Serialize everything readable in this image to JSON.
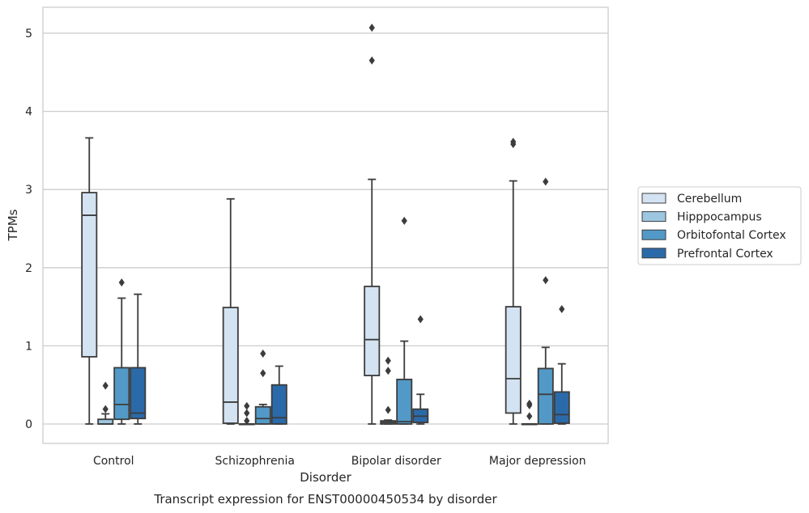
{
  "caption": "Transcript expression for ENST00000450534 by disorder",
  "chart_data": {
    "type": "box",
    "xlabel": "Disorder",
    "ylabel": "TPMs",
    "ylim": [
      -0.25,
      5.33
    ],
    "yticks": [
      0,
      1,
      2,
      3,
      4,
      5
    ],
    "grid": "horizontal",
    "legend_position": "right",
    "categories": [
      "Control",
      "Schizophrenia",
      "Bipolar disorder",
      "Major depression"
    ],
    "series": [
      {
        "name": "Cerebellum",
        "color": "#d3e3f2",
        "boxes": [
          {
            "whisker_low": 0.0,
            "q1": 0.86,
            "median": 2.67,
            "q3": 2.96,
            "whisker_high": 3.66,
            "outliers": []
          },
          {
            "whisker_low": 0.0,
            "q1": 0.01,
            "median": 0.28,
            "q3": 1.49,
            "whisker_high": 2.88,
            "outliers": []
          },
          {
            "whisker_low": 0.0,
            "q1": 0.62,
            "median": 1.08,
            "q3": 1.76,
            "whisker_high": 3.13,
            "outliers": [
              4.65,
              5.07
            ]
          },
          {
            "whisker_low": 0.0,
            "q1": 0.14,
            "median": 0.58,
            "q3": 1.5,
            "whisker_high": 3.11,
            "outliers": [
              3.58,
              3.61
            ]
          }
        ]
      },
      {
        "name": "Hipppocampus",
        "color": "#9dc7e0",
        "boxes": [
          {
            "whisker_low": 0.0,
            "q1": 0.0,
            "median": 0.0,
            "q3": 0.06,
            "whisker_high": 0.13,
            "outliers": [
              0.19,
              0.49
            ]
          },
          {
            "whisker_low": 0.0,
            "q1": 0.0,
            "median": 0.0,
            "q3": 0.0,
            "whisker_high": 0.0,
            "outliers": [
              0.04,
              0.14,
              0.23
            ]
          },
          {
            "whisker_low": 0.0,
            "q1": 0.0,
            "median": 0.02,
            "q3": 0.04,
            "whisker_high": 0.05,
            "outliers": [
              0.18,
              0.68,
              0.81
            ]
          },
          {
            "whisker_low": 0.0,
            "q1": 0.0,
            "median": 0.0,
            "q3": 0.0,
            "whisker_high": 0.0,
            "outliers": [
              0.1,
              0.24,
              0.26
            ]
          }
        ]
      },
      {
        "name": "Orbitofontal Cortex",
        "color": "#5299c7",
        "boxes": [
          {
            "whisker_low": 0.0,
            "q1": 0.06,
            "median": 0.25,
            "q3": 0.72,
            "whisker_high": 1.61,
            "outliers": [
              1.81
            ]
          },
          {
            "whisker_low": 0.0,
            "q1": 0.0,
            "median": 0.07,
            "q3": 0.22,
            "whisker_high": 0.25,
            "outliers": [
              0.65,
              0.9
            ]
          },
          {
            "whisker_low": 0.0,
            "q1": 0.0,
            "median": 0.03,
            "q3": 0.57,
            "whisker_high": 1.06,
            "outliers": [
              2.6
            ]
          },
          {
            "whisker_low": 0.0,
            "q1": 0.0,
            "median": 0.38,
            "q3": 0.71,
            "whisker_high": 0.98,
            "outliers": [
              1.84,
              3.1
            ]
          }
        ]
      },
      {
        "name": "Prefrontal Cortex",
        "color": "#2b6aa9",
        "boxes": [
          {
            "whisker_low": 0.0,
            "q1": 0.07,
            "median": 0.14,
            "q3": 0.72,
            "whisker_high": 1.66,
            "outliers": []
          },
          {
            "whisker_low": 0.0,
            "q1": 0.0,
            "median": 0.08,
            "q3": 0.5,
            "whisker_high": 0.74,
            "outliers": []
          },
          {
            "whisker_low": 0.0,
            "q1": 0.02,
            "median": 0.1,
            "q3": 0.19,
            "whisker_high": 0.38,
            "outliers": [
              1.34
            ]
          },
          {
            "whisker_low": 0.0,
            "q1": 0.01,
            "median": 0.12,
            "q3": 0.41,
            "whisker_high": 0.77,
            "outliers": [
              1.47
            ]
          }
        ]
      }
    ]
  }
}
